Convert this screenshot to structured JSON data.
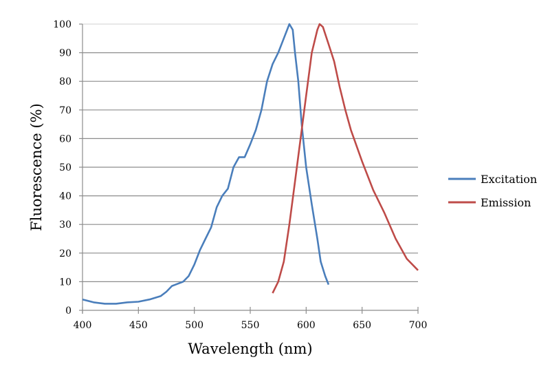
{
  "chart_data": {
    "type": "line",
    "title": "",
    "xlabel": "Wavelength (nm)",
    "ylabel": "Fluorescence (%)",
    "xlim": [
      400,
      700
    ],
    "ylim": [
      0,
      100
    ],
    "xticks": [
      400,
      450,
      500,
      550,
      600,
      650,
      700
    ],
    "yticks": [
      0,
      10,
      20,
      30,
      40,
      50,
      60,
      70,
      80,
      90,
      100
    ],
    "grid": "horizontal",
    "legend": "right",
    "series": [
      {
        "name": "Excitation",
        "color": "#4a7ebb",
        "x": [
          400,
          410,
          420,
          430,
          440,
          450,
          460,
          470,
          475,
          480,
          490,
          495,
          500,
          505,
          510,
          515,
          520,
          525,
          530,
          535,
          540,
          545,
          550,
          555,
          560,
          565,
          570,
          575,
          580,
          585,
          588,
          590,
          593,
          596,
          600,
          605,
          610,
          613,
          617,
          620
        ],
        "y": [
          3.8,
          2.8,
          2.3,
          2.3,
          2.8,
          3.0,
          3.8,
          5,
          6.5,
          8.5,
          10,
          12,
          16,
          21,
          25,
          29,
          36,
          40,
          42.5,
          50,
          53.5,
          53.5,
          58,
          63,
          70,
          80,
          86,
          90,
          95,
          100,
          98,
          90,
          80,
          65,
          50,
          37,
          25,
          17,
          12,
          9
        ]
      },
      {
        "name": "Emission",
        "color": "#be4b48",
        "x": [
          570,
          575,
          580,
          585,
          590,
          595,
          600,
          605,
          610,
          612,
          615,
          620,
          625,
          630,
          635,
          640,
          650,
          660,
          670,
          680,
          690,
          700
        ],
        "y": [
          6,
          10,
          17,
          30,
          45,
          60,
          75,
          90,
          98,
          100,
          99,
          93,
          87,
          78,
          70,
          63,
          52,
          42,
          34,
          25,
          18,
          14
        ]
      }
    ]
  }
}
